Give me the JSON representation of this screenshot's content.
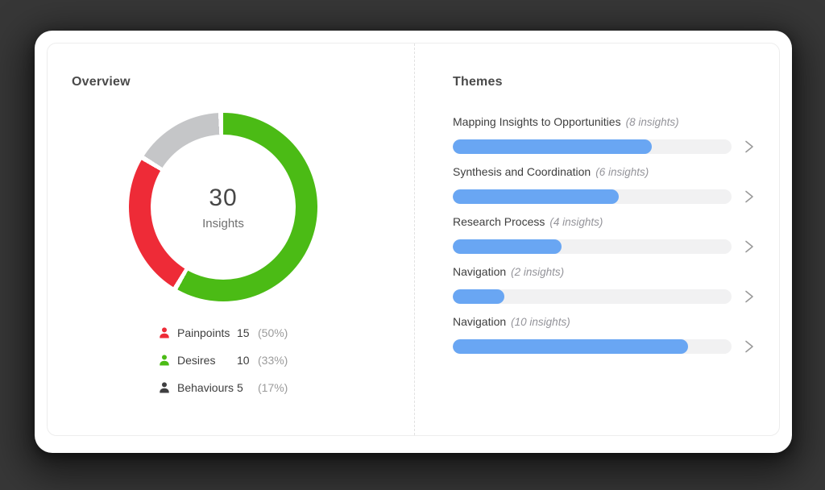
{
  "overview": {
    "title": "Overview",
    "donut": {
      "center_value": "30",
      "center_label": "Insights",
      "segments_displayed": [
        {
          "name": "desires-green",
          "color": "#4bbb15",
          "start": 0,
          "end": 209
        },
        {
          "name": "painpoints-red",
          "color": "#ee2b37",
          "start": 212,
          "end": 300
        },
        {
          "name": "behaviours-gray",
          "color": "#c5c6c8",
          "start": 303,
          "end": 357
        }
      ],
      "gap_color": "#ffffff"
    },
    "legend": [
      {
        "label": "Painpoints",
        "count": "15",
        "percent": "(50%)",
        "color": "#ee2b37"
      },
      {
        "label": "Desires",
        "count": "10",
        "percent": "(33%)",
        "color": "#4bbb15"
      },
      {
        "label": "Behaviours",
        "count": "5",
        "percent": "(17%)",
        "color": "#3f3f41"
      }
    ]
  },
  "themes": {
    "title": "Themes",
    "bar_color": "#69a6f3",
    "items": [
      {
        "label": "Mapping Insights to Opportunities",
        "insights": "(8 insights)",
        "fill_percent": 71.5
      },
      {
        "label": "Synthesis and Coordination",
        "insights": "(6 insights)",
        "fill_percent": 59.4
      },
      {
        "label": "Research Process",
        "insights": "(4 insights)",
        "fill_percent": 38.9
      },
      {
        "label": "Navigation",
        "insights": "(2 insights)",
        "fill_percent": 18.4
      },
      {
        "label": "Navigation",
        "insights": "(10 insights)",
        "fill_percent": 84.4
      }
    ]
  },
  "chart_data": [
    {
      "type": "pie",
      "title": "Overview — Insights by type",
      "labels": [
        "Painpoints",
        "Desires",
        "Behaviours"
      ],
      "values": [
        15,
        10,
        5
      ],
      "percents": [
        50,
        33,
        17
      ],
      "total": 30,
      "center_text": [
        "30",
        "Insights"
      ],
      "legend_colors": [
        "#ee2b37",
        "#4bbb15",
        "#3f3f41"
      ],
      "displayed_segment_colors": [
        "#4bbb15",
        "#ee2b37",
        "#c5c6c8"
      ],
      "legend_position": "below-chart"
    },
    {
      "type": "bar",
      "title": "Themes",
      "categories": [
        "Mapping Insights to Opportunities",
        "Synthesis and Coordination",
        "Research Process",
        "Navigation",
        "Navigation"
      ],
      "values": [
        8,
        6,
        4,
        2,
        10
      ],
      "unit": "insights",
      "bar_fill_percent_of_track": [
        71.5,
        59.4,
        38.9,
        18.4,
        84.4
      ],
      "orientation": "horizontal",
      "bar_color": "#69a6f3",
      "track_color": "#f1f1f2"
    }
  ]
}
